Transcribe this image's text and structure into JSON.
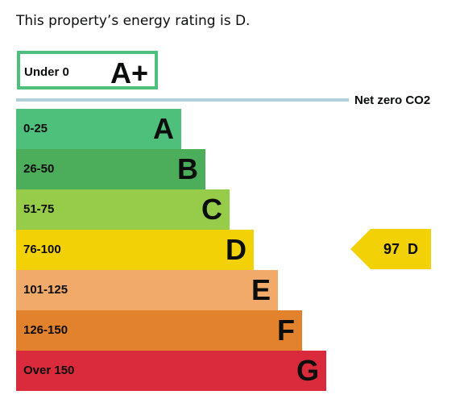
{
  "title": "This property’s energy rating is D.",
  "aplus": {
    "range": "Under 0",
    "letter": "A+",
    "color": "#4fc07c"
  },
  "net_zero_label": "Net zero CO2",
  "bands": [
    {
      "range": "0-25",
      "letter": "A",
      "color": "#4fc07c"
    },
    {
      "range": "26-50",
      "letter": "B",
      "color": "#4cae5b"
    },
    {
      "range": "51-75",
      "letter": "C",
      "color": "#97cc4a"
    },
    {
      "range": "76-100",
      "letter": "D",
      "color": "#f2d106"
    },
    {
      "range": "101-125",
      "letter": "E",
      "color": "#f2aa6a"
    },
    {
      "range": "126-150",
      "letter": "F",
      "color": "#e2822d"
    },
    {
      "range": "Over 150",
      "letter": "G",
      "color": "#d92b3b"
    }
  ],
  "current_rating": {
    "score": "97",
    "letter": "D",
    "color": "#f2d106"
  }
}
